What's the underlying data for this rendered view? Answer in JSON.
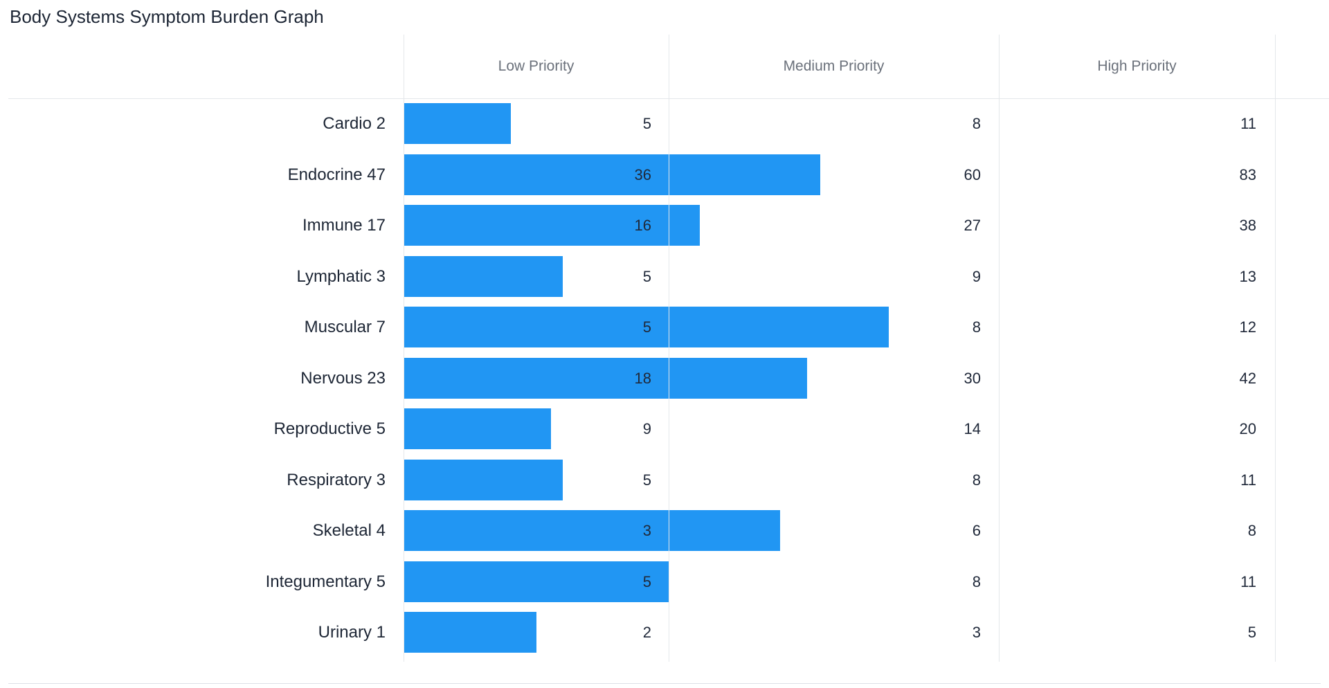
{
  "page_title": "Body Systems Symptom Burden Graph",
  "chart_data": {
    "type": "bar",
    "orientation": "horizontal",
    "title": "Body Systems Symptom Burden Graph",
    "column_headers": [
      "Low Priority",
      "Medium Priority",
      "High Priority"
    ],
    "legend": false,
    "grid": true,
    "bar_color": "#2196f3",
    "grid_color": "#e4e7ea",
    "header_text_color": "#6b717b",
    "text_color": "#1d2635",
    "categories": [
      "Cardio 2",
      "Endocrine 47",
      "Immune 17",
      "Lymphatic 3",
      "Muscular 7",
      "Nervous 23",
      "Reproductive 5",
      "Respiratory 3",
      "Skeletal 4",
      "Integumentary 5",
      "Urinary 1"
    ],
    "series": [
      {
        "name": "Low Priority",
        "values": [
          5,
          36,
          16,
          5,
          5,
          18,
          9,
          5,
          3,
          5,
          2
        ]
      },
      {
        "name": "Medium Priority",
        "values": [
          8,
          60,
          27,
          9,
          8,
          30,
          14,
          8,
          6,
          8,
          3
        ]
      },
      {
        "name": "High Priority",
        "values": [
          11,
          83,
          38,
          13,
          12,
          42,
          20,
          11,
          8,
          11,
          5
        ]
      }
    ],
    "rows": [
      {
        "label": "Cardio 2",
        "low": 5,
        "medium": 8,
        "high": 11,
        "bar_pct": 12.2
      },
      {
        "label": "Endocrine 47",
        "low": 36,
        "medium": 60,
        "high": 83,
        "bar_pct": 47.7
      },
      {
        "label": "Immune 17",
        "low": 16,
        "medium": 27,
        "high": 38,
        "bar_pct": 33.9
      },
      {
        "label": "Lymphatic 3",
        "low": 5,
        "medium": 9,
        "high": 13,
        "bar_pct": 18.2
      },
      {
        "label": "Muscular 7",
        "low": 5,
        "medium": 8,
        "high": 12,
        "bar_pct": 55.6
      },
      {
        "label": "Nervous 23",
        "low": 18,
        "medium": 30,
        "high": 42,
        "bar_pct": 46.2
      },
      {
        "label": "Reproductive 5",
        "low": 9,
        "medium": 14,
        "high": 20,
        "bar_pct": 16.8
      },
      {
        "label": "Respiratory 3",
        "low": 5,
        "medium": 8,
        "high": 11,
        "bar_pct": 18.2
      },
      {
        "label": "Skeletal 4",
        "low": 3,
        "medium": 6,
        "high": 8,
        "bar_pct": 43.1
      },
      {
        "label": "Integumentary 5",
        "low": 5,
        "medium": 8,
        "high": 11,
        "bar_pct": 30.3
      },
      {
        "label": "Urinary 1",
        "low": 2,
        "medium": 3,
        "high": 5,
        "bar_pct": 15.2
      }
    ]
  }
}
